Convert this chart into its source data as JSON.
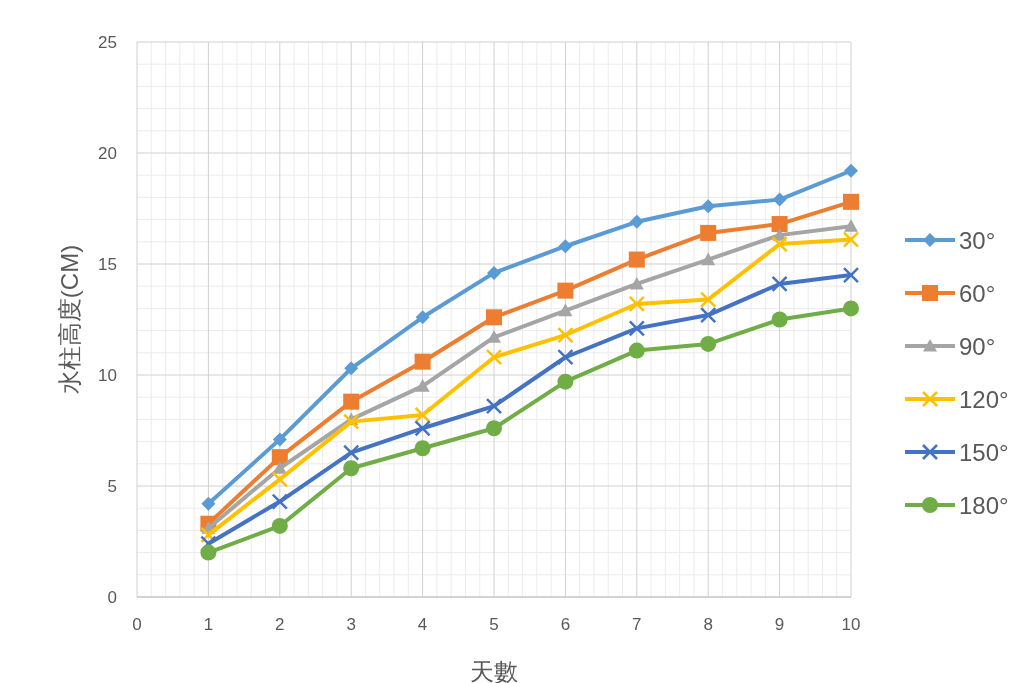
{
  "chart_data": {
    "type": "line",
    "xlabel": "天數",
    "ylabel": "水柱高度(CM)",
    "x": [
      1,
      2,
      3,
      4,
      5,
      6,
      7,
      8,
      9,
      10
    ],
    "xlim": [
      0,
      10
    ],
    "xticks": [
      0,
      1,
      2,
      3,
      4,
      5,
      6,
      7,
      8,
      9,
      10
    ],
    "ylim": [
      0,
      25
    ],
    "yticks": [
      0,
      5,
      10,
      15,
      20,
      25
    ],
    "grid": true,
    "legend": "right",
    "line_style": "solid",
    "series": [
      {
        "name": "30°",
        "color": "#5b9bd5",
        "marker": "diamond",
        "values": [
          4.2,
          7.1,
          10.3,
          12.6,
          14.6,
          15.8,
          16.9,
          17.6,
          17.9,
          19.2
        ]
      },
      {
        "name": "60°",
        "color": "#ed7d31",
        "marker": "square",
        "values": [
          3.3,
          6.3,
          8.8,
          10.6,
          12.6,
          13.8,
          15.2,
          16.4,
          16.8,
          17.8
        ]
      },
      {
        "name": "90°",
        "color": "#a5a5a5",
        "marker": "triangle",
        "values": [
          3.1,
          5.8,
          8.0,
          9.5,
          11.7,
          12.9,
          14.1,
          15.2,
          16.3,
          16.7
        ]
      },
      {
        "name": "120°",
        "color": "#ffc000",
        "marker": "cross",
        "values": [
          2.8,
          5.3,
          7.9,
          8.2,
          10.8,
          11.8,
          13.2,
          13.4,
          15.9,
          16.1
        ]
      },
      {
        "name": "150°",
        "color": "#4472c4",
        "marker": "cross",
        "values": [
          2.4,
          4.3,
          6.5,
          7.6,
          8.6,
          10.8,
          12.1,
          12.7,
          14.1,
          14.5
        ]
      },
      {
        "name": "180°",
        "color": "#70ad47",
        "marker": "circle",
        "values": [
          2.0,
          3.2,
          5.8,
          6.7,
          7.6,
          9.7,
          11.1,
          11.4,
          12.5,
          13.0
        ]
      }
    ]
  }
}
